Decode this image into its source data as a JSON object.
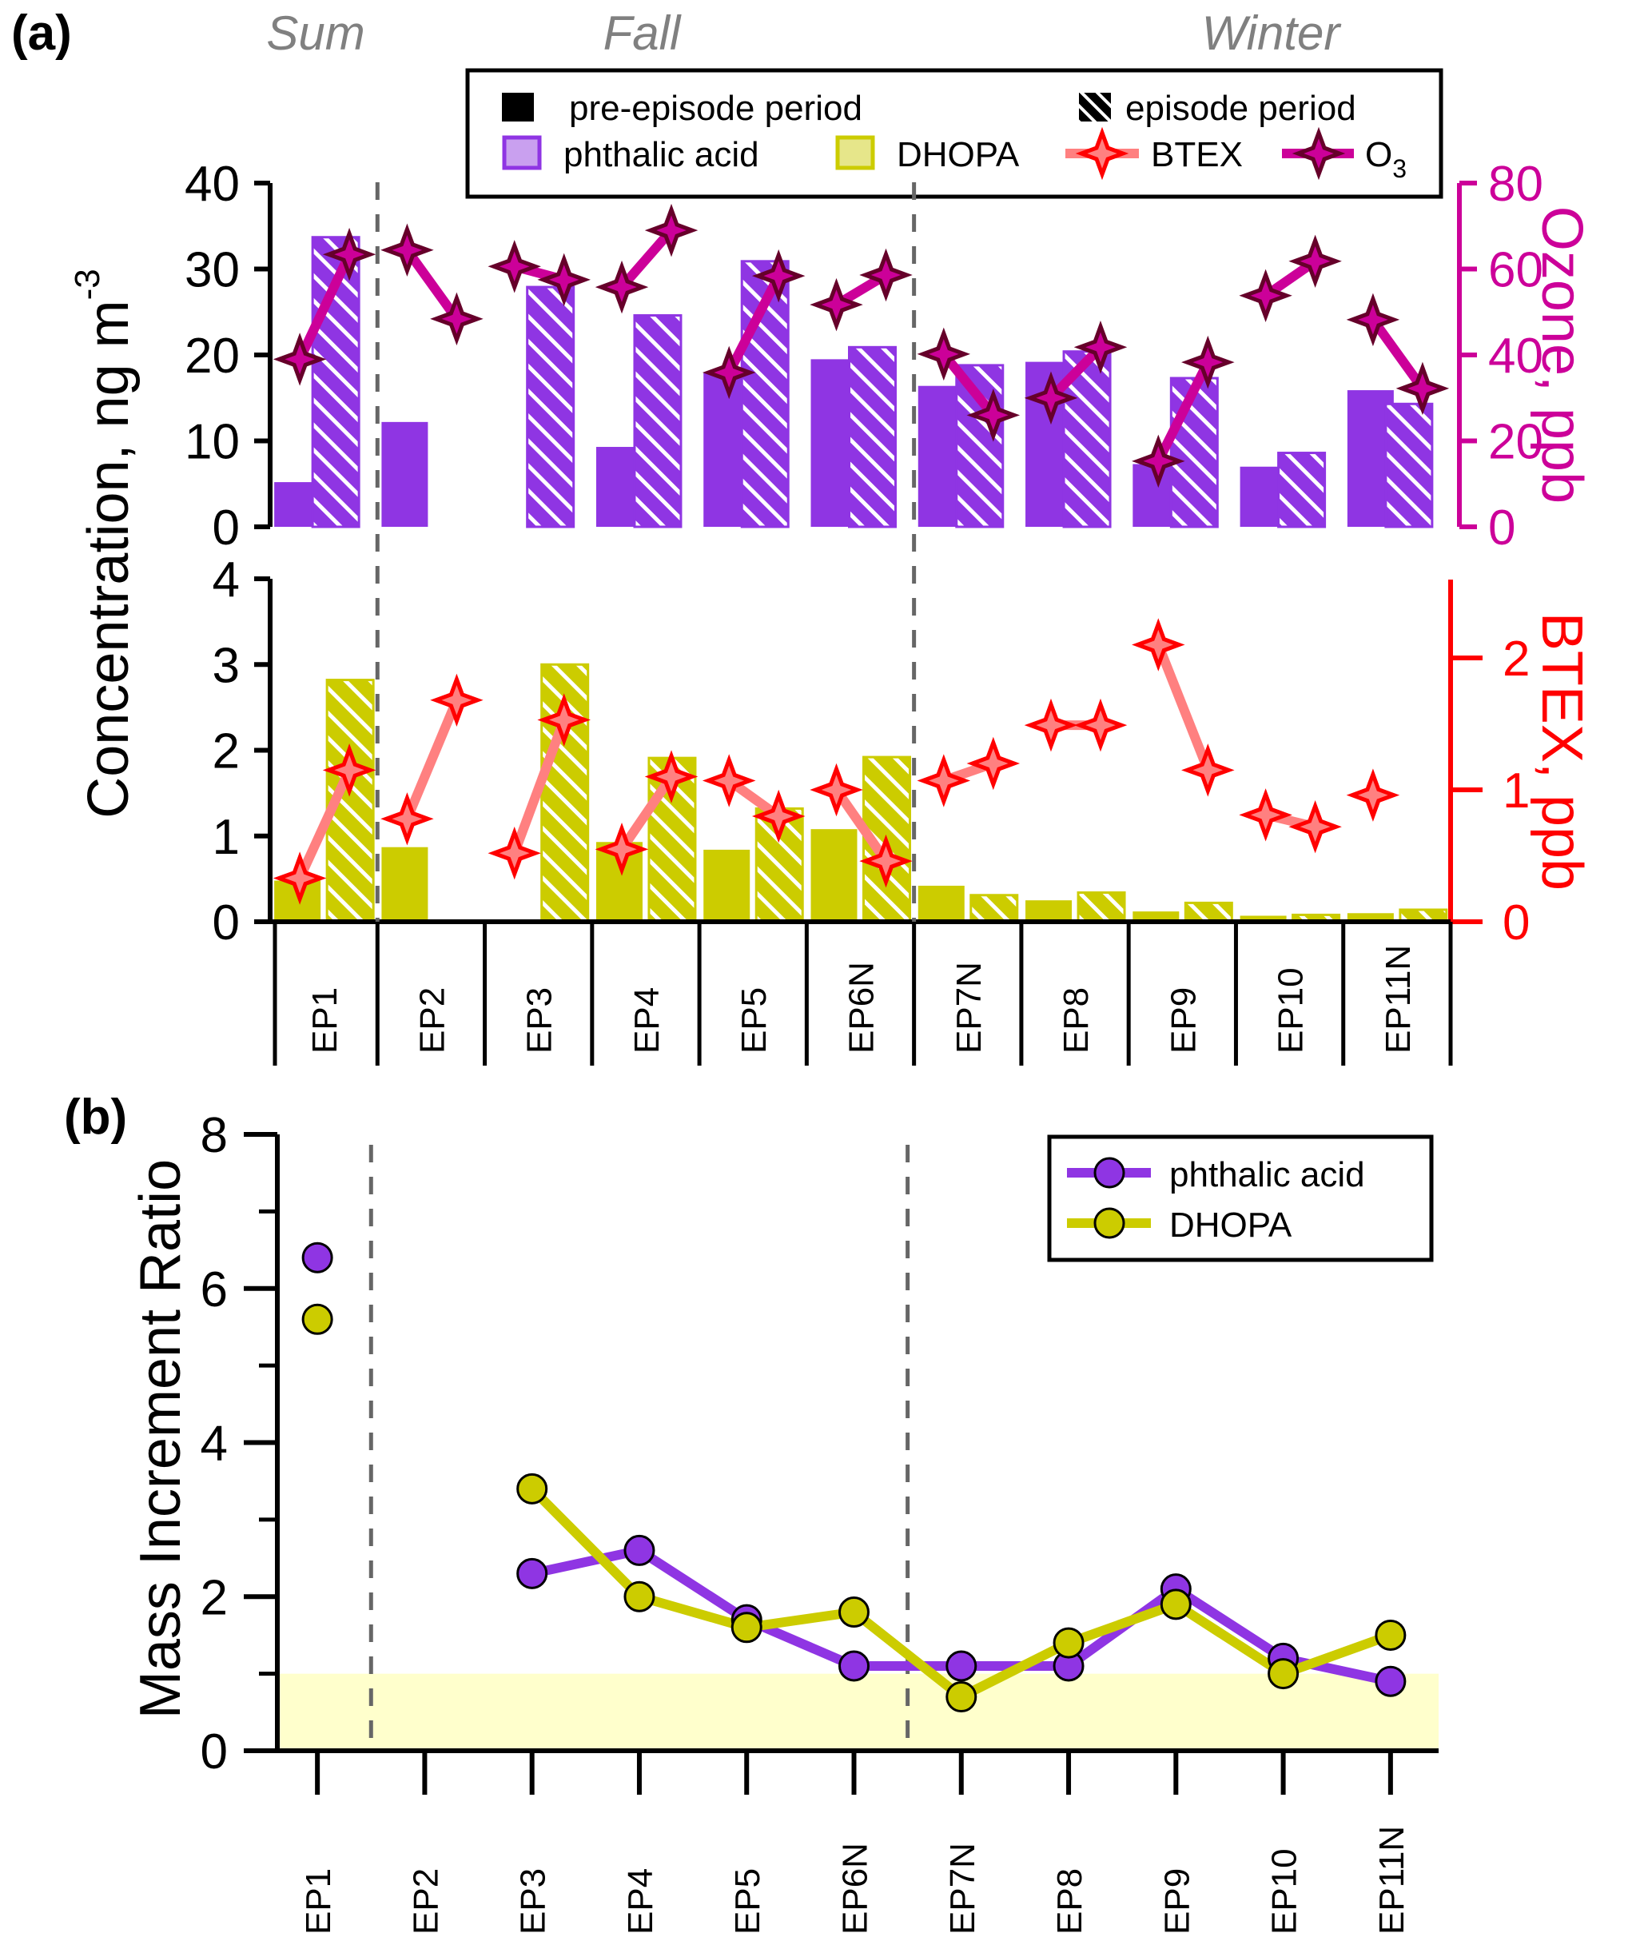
{
  "chart_data": [
    {
      "panel": "(a)",
      "type": "bar",
      "seasons": [
        "Sum",
        "Fall",
        "Winter"
      ],
      "categories": [
        "EP1",
        "EP2",
        "EP3",
        "EP4",
        "EP5",
        "EP6N",
        "EP7N",
        "EP8",
        "EP9",
        "EP10",
        "EP11N"
      ],
      "season_dividers_after": [
        "EP1",
        "EP6N"
      ],
      "legend": {
        "items": [
          {
            "label": "pre-episode period",
            "kind": "solid"
          },
          {
            "label": "episode period",
            "kind": "hatched"
          },
          {
            "label": "phthalic acid",
            "kind": "bar"
          },
          {
            "label": "DHOPA",
            "kind": "bar"
          },
          {
            "label": "BTEX",
            "kind": "line-marker"
          },
          {
            "label": "O",
            "sub": "3",
            "kind": "line-marker"
          }
        ]
      },
      "upper": {
        "ylabel_left": "Concentration, ng m",
        "ylabel_left_sup": "-3",
        "ylim_left": [
          0,
          40
        ],
        "yticks_left": [
          0,
          10,
          20,
          30,
          40
        ],
        "ylabel_right": "Ozone, ppb",
        "ylim_right": [
          0,
          80
        ],
        "yticks_right": [
          0,
          20,
          40,
          60,
          80
        ],
        "series": [
          {
            "name": "phthalic acid (pre-episode)",
            "axis": "left",
            "values": [
              5.2,
              12.2,
              null,
              9.3,
              17.9,
              19.5,
              16.4,
              19.2,
              7.3,
              7.0,
              15.9
            ]
          },
          {
            "name": "phthalic acid (episode)",
            "axis": "left",
            "values": [
              33.7,
              null,
              27.9,
              24.6,
              30.9,
              20.9,
              18.8,
              20.4,
              17.3,
              8.6,
              14.3
            ]
          },
          {
            "name": "O3 (pre-episode)",
            "axis": "right",
            "values": [
              39,
              64.4,
              60.6,
              55.8,
              35.9,
              51.7,
              40.2,
              30,
              15.3,
              53.8,
              48.2
            ]
          },
          {
            "name": "O3 (episode)",
            "axis": "right",
            "values": [
              63.4,
              48.4,
              57.5,
              69,
              58.4,
              58.6,
              26,
              41.8,
              38.3,
              61.8,
              32.2
            ]
          }
        ]
      },
      "lower": {
        "ylim_left": [
          0,
          4
        ],
        "yticks_left": [
          0,
          1,
          2,
          3,
          4
        ],
        "ylabel_right": "BTEX, ppb",
        "ylim_right": [
          0,
          2.6
        ],
        "yticks_right": [
          0,
          1,
          2
        ],
        "series": [
          {
            "name": "DHOPA (pre-episode)",
            "axis": "left",
            "values": [
              0.48,
              0.87,
              null,
              0.93,
              0.84,
              1.08,
              0.42,
              0.25,
              0.12,
              0.07,
              0.1
            ]
          },
          {
            "name": "DHOPA (episode)",
            "axis": "left",
            "values": [
              2.82,
              null,
              3.0,
              1.91,
              1.32,
              1.92,
              0.31,
              0.34,
              0.22,
              0.08,
              0.14
            ]
          },
          {
            "name": "BTEX (pre-episode)",
            "axis": "right",
            "values": [
              0.33,
              0.78,
              0.52,
              0.55,
              1.07,
              1.0,
              1.07,
              1.49,
              2.1,
              0.81,
              0.96
            ]
          },
          {
            "name": "BTEX (episode)",
            "axis": "right",
            "values": [
              1.15,
              1.68,
              1.53,
              1.1,
              0.8,
              0.46,
              1.2,
              1.49,
              1.15,
              0.72,
              null
            ]
          }
        ]
      }
    },
    {
      "panel": "(b)",
      "type": "line",
      "categories": [
        "EP1",
        "EP2",
        "EP3",
        "EP4",
        "EP5",
        "EP6N",
        "EP7N",
        "EP8",
        "EP9",
        "EP10",
        "EP11N"
      ],
      "ylabel": "Mass Increment Ratio",
      "ylim": [
        0,
        8
      ],
      "yticks": [
        0,
        2,
        4,
        6,
        8
      ],
      "yminor": [
        1,
        3,
        5,
        7
      ],
      "shaded_band": [
        0,
        1
      ],
      "legend_position": "top-right",
      "series": [
        {
          "name": "phthalic acid",
          "values": [
            6.4,
            null,
            2.3,
            2.6,
            1.7,
            1.1,
            1.1,
            1.1,
            2.1,
            1.2,
            0.9
          ]
        },
        {
          "name": "DHOPA",
          "values": [
            5.6,
            null,
            3.4,
            2.0,
            1.6,
            1.8,
            0.7,
            1.4,
            1.9,
            1.0,
            1.5
          ]
        }
      ]
    }
  ],
  "colors": {
    "phthalic": "#8f35e3",
    "phthalic_light": "#c9a0ef",
    "dhopa": "#cccc00",
    "dhopa_light": "#e6e68a",
    "btex_line": "#ff8080",
    "btex_edge": "#ff0000",
    "o3_line": "#cc0099",
    "o3_edge": "#66002a",
    "ozone_axis": "#cc0099",
    "btex_axis": "#ff0000",
    "band": "#ffffcc",
    "season": "#808080"
  },
  "labels": {
    "panel_a": "(a)",
    "panel_b": "(b)"
  }
}
